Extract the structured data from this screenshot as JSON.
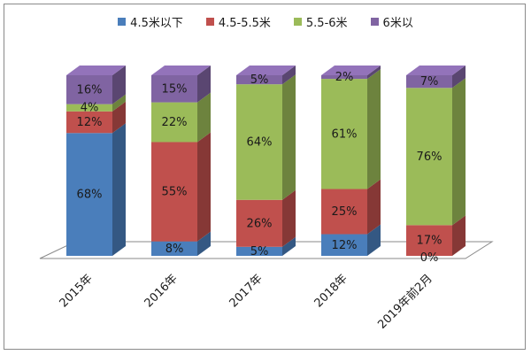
{
  "chart_data": {
    "type": "bar",
    "stacked": true,
    "percent": true,
    "three_d": true,
    "categories": [
      "2015年",
      "2016年",
      "2017年",
      "2018年",
      "2019年前2月"
    ],
    "series": [
      {
        "name": "4.5米以下",
        "color": "#4a7ebb",
        "values": [
          68,
          8,
          5,
          12,
          0
        ]
      },
      {
        "name": "4.5-5.5米",
        "color": "#c0504d",
        "values": [
          12,
          55,
          26,
          25,
          17
        ]
      },
      {
        "name": "5.5-6米",
        "color": "#9bbb59",
        "values": [
          4,
          22,
          64,
          61,
          76
        ]
      },
      {
        "name": "6米以",
        "color": "#8064a2",
        "values": [
          16,
          15,
          5,
          2,
          7
        ]
      }
    ],
    "data_labels": [
      [
        "68%",
        "8%",
        "5%",
        "12%",
        "0%"
      ],
      [
        "12%",
        "55%",
        "26%",
        "25%",
        "17%"
      ],
      [
        "4%",
        "22%",
        "64%",
        "61%",
        "76%"
      ],
      [
        "16%",
        "15%",
        "5%",
        "2%",
        "7%"
      ]
    ],
    "ylim": [
      0,
      100
    ],
    "legend_position": "top",
    "grid": false
  }
}
